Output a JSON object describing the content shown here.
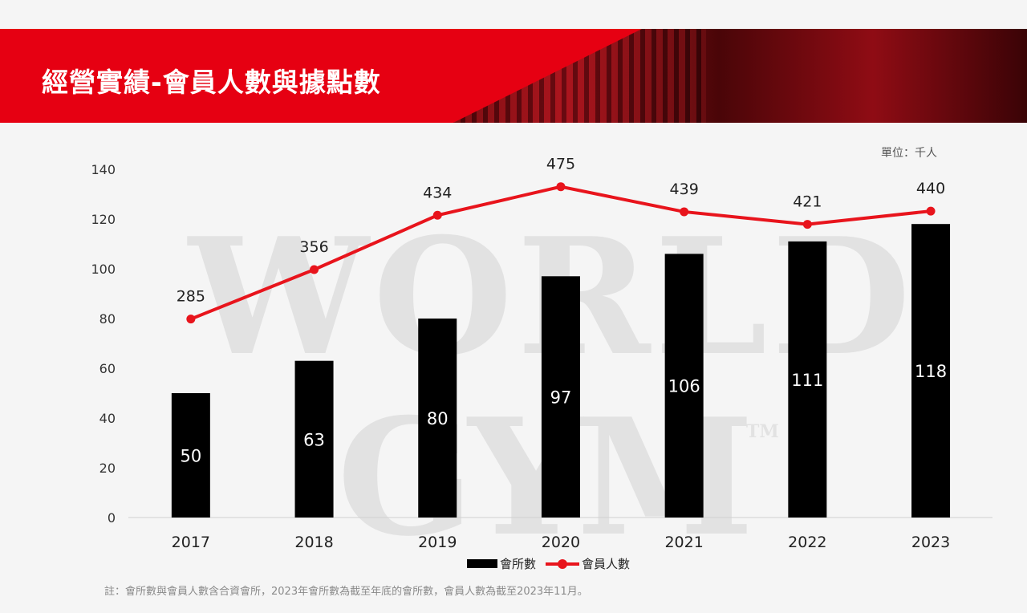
{
  "header": {
    "title": "經營實績-會員人數與據點數"
  },
  "unit_label": "單位：千人",
  "watermark": {
    "text_top": "WORLD",
    "text_bottom": "GYM",
    "tm": "TM"
  },
  "note": "註：會所數與會員人數含合資會所，2023年會所數為截至年底的會所數，會員人數為截至2023年11月。",
  "colors": {
    "brand_red": "#e60012",
    "bar": "#000000",
    "line": "#e8141c"
  },
  "chart_data": {
    "type": "bar+line",
    "categories": [
      "2017",
      "2018",
      "2019",
      "2020",
      "2021",
      "2022",
      "2023"
    ],
    "series": [
      {
        "name": "會所數",
        "type": "bar",
        "axis": "left",
        "values": [
          50,
          63,
          80,
          97,
          106,
          111,
          118
        ]
      },
      {
        "name": "會員人數",
        "type": "line",
        "axis": "right-hidden",
        "values": [
          285,
          356,
          434,
          475,
          439,
          421,
          440
        ]
      }
    ],
    "yticks": [
      "0",
      "20",
      "40",
      "60",
      "80",
      "100",
      "120",
      "140"
    ],
    "ylim": [
      0,
      140
    ],
    "y2lim": [
      0,
      500
    ],
    "grid": false,
    "legend": "bottom",
    "xlabel": "",
    "ylabel": ""
  }
}
